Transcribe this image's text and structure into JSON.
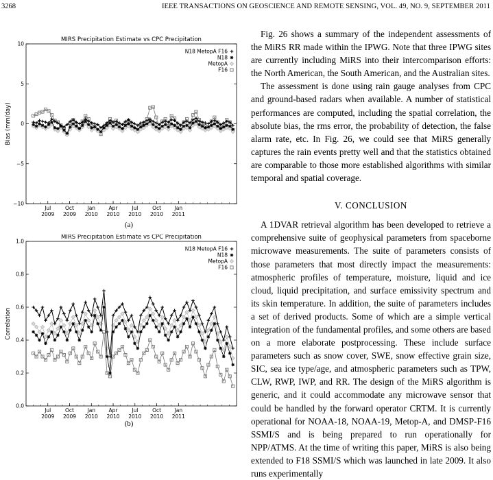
{
  "header": {
    "page_number": "3268",
    "journal": "IEEE TRANSACTIONS ON GEOSCIENCE AND REMOTE SENSING, VOL. 49, NO. 9, SEPTEMBER 2011"
  },
  "figures": {
    "a_caption": "(a)",
    "b_caption": "(b)"
  },
  "chart_data": [
    {
      "type": "line",
      "title": "MIRS Precipitation Estimate vs CPC Precipitation",
      "ylabel": "Bias (mm/day)",
      "xlabel": "",
      "ylim": [
        -10,
        10
      ],
      "xlim": [
        0,
        29
      ],
      "yticks": [
        "10",
        "5",
        "0",
        "−5",
        "−10"
      ],
      "ytick_values": [
        10,
        5,
        0,
        -5,
        -10
      ],
      "xticks": [
        {
          "pos": 3,
          "m": "Jul",
          "y": "2009"
        },
        {
          "pos": 6,
          "m": "Oct",
          "y": "2009"
        },
        {
          "pos": 9,
          "m": "Jan",
          "y": "2010"
        },
        {
          "pos": 12,
          "m": "Apr",
          "y": "2010"
        },
        {
          "pos": 15,
          "m": "Jul",
          "y": "2010"
        },
        {
          "pos": 18,
          "m": "Oct",
          "y": "2010"
        },
        {
          "pos": 21,
          "m": "Jan",
          "y": "2011"
        }
      ],
      "legend_position": "top-right",
      "series": [
        {
          "name": "N18 MetopA F16",
          "marker": "plus",
          "color": "#000000",
          "values": [
            0.2,
            0.1,
            0.4,
            0.3,
            0.2,
            0.1,
            0.6,
            0.3,
            0.1,
            -0.2,
            -0.4,
            -0.1,
            0.3,
            0.5,
            0.2,
            0.0,
            0.2,
            0.6,
            0.3,
            0.1,
            0.0,
            -0.1,
            -0.5,
            -0.2,
            0.1,
            0.4,
            0.2,
            0.3,
            0.1,
            -0.1,
            0.3,
            0.5,
            0.2,
            0.0,
            -0.2,
            0.1,
            0.2,
            0.4,
            0.6,
            0.3,
            0.1,
            -0.1,
            0.2,
            0.3,
            0.2,
            0.5,
            0.4,
            0.1,
            -0.2,
            0.2,
            0.3,
            0.1,
            0.5,
            0.7,
            0.3,
            0.2,
            0.1,
            0.0,
            0.3,
            0.4,
            0.2,
            -0.1,
            0.1,
            0.3,
            0.2,
            -0.2
          ]
        },
        {
          "name": "N18",
          "marker": "asterisk",
          "color": "#000000",
          "values": [
            -0.1,
            -0.3,
            0.0,
            -0.2,
            -0.4,
            -0.1,
            0.2,
            -0.5,
            -0.6,
            -0.3,
            -0.8,
            -1.2,
            -0.4,
            0.0,
            -0.3,
            -0.6,
            -0.2,
            0.3,
            -0.1,
            -0.5,
            -0.4,
            -0.7,
            -1.0,
            -0.5,
            -0.2,
            0.1,
            -0.3,
            -0.1,
            -0.4,
            -0.6,
            -0.2,
            0.0,
            -0.3,
            -0.5,
            -0.7,
            -0.4,
            -0.2,
            0.0,
            0.3,
            -0.1,
            -0.4,
            -0.6,
            -0.3,
            -0.1,
            -0.4,
            0.0,
            -0.2,
            -0.5,
            -0.7,
            -0.3,
            -0.2,
            -0.5,
            0.1,
            0.3,
            -0.1,
            -0.3,
            -0.5,
            -0.4,
            -0.2,
            0.0,
            -0.3,
            -0.6,
            -0.4,
            -0.2,
            -0.3,
            -0.7
          ]
        },
        {
          "name": "MetopA",
          "marker": "diamond",
          "color": "#bbbbbb",
          "values": [
            -0.3,
            -0.5,
            -0.2,
            -0.4,
            -0.6,
            -0.4,
            -0.1,
            -0.7,
            -0.9,
            -0.5,
            -1.0,
            -1.4,
            -0.7,
            -0.3,
            -0.5,
            -0.8,
            -0.4,
            0.0,
            -0.4,
            -0.8,
            -0.6,
            -0.9,
            -1.2,
            -0.8,
            -0.5,
            -0.2,
            -0.6,
            -0.4,
            -0.6,
            -0.9,
            -0.5,
            -0.3,
            -0.6,
            -0.8,
            -1.0,
            -0.7,
            -0.5,
            -0.2,
            0.0,
            -0.4,
            -0.7,
            -0.9,
            -0.6,
            -0.4,
            -0.7,
            -0.3,
            -0.5,
            -0.8,
            -1.0,
            -0.6,
            -0.5,
            -0.8,
            -0.2,
            0.0,
            -0.4,
            -0.6,
            -0.8,
            -0.7,
            -0.5,
            -0.3,
            -0.6,
            -0.9,
            -0.7,
            -0.5,
            -0.6,
            -1.0
          ]
        },
        {
          "name": "F16",
          "marker": "square",
          "color": "#777777",
          "values": [
            1.0,
            1.2,
            1.4,
            1.5,
            1.8,
            1.6,
            1.1,
            0.4,
            0.2,
            -0.2,
            -0.6,
            -1.3,
            0.1,
            0.5,
            0.0,
            -0.6,
            0.3,
            1.0,
            0.6,
            0.0,
            -0.4,
            -0.8,
            -1.3,
            -0.6,
            0.0,
            0.6,
            0.2,
            0.4,
            -0.2,
            -0.7,
            0.1,
            0.4,
            -0.1,
            -0.6,
            -0.9,
            -0.3,
            0.1,
            0.6,
            2.0,
            2.1,
            0.8,
            -0.3,
            0.3,
            0.6,
            0.1,
            1.0,
            0.7,
            -0.2,
            -0.8,
            0.2,
            0.6,
            0.0,
            1.1,
            1.5,
            0.5,
            0.1,
            -0.3,
            -0.6,
            0.3,
            0.8,
            0.2,
            -0.5,
            -0.2,
            0.5,
            0.2,
            -0.8
          ]
        }
      ]
    },
    {
      "type": "line",
      "title": "MIRS Precipitation Estimate vs CPC Precipitation",
      "ylabel": "Correlation",
      "xlabel": "",
      "ylim": [
        0.0,
        1.0
      ],
      "xlim": [
        0,
        29
      ],
      "yticks": [
        "1.0",
        "0.8",
        "0.6",
        "0.4",
        "0.2",
        "0.0"
      ],
      "ytick_values": [
        1.0,
        0.8,
        0.6,
        0.4,
        0.2,
        0.0
      ],
      "xticks": [
        {
          "pos": 3,
          "m": "Jul",
          "y": "2009"
        },
        {
          "pos": 6,
          "m": "Oct",
          "y": "2009"
        },
        {
          "pos": 9,
          "m": "Jan",
          "y": "2010"
        },
        {
          "pos": 12,
          "m": "Apr",
          "y": "2010"
        },
        {
          "pos": 15,
          "m": "Jul",
          "y": "2010"
        },
        {
          "pos": 18,
          "m": "Oct",
          "y": "2010"
        },
        {
          "pos": 21,
          "m": "Jan",
          "y": "2011"
        }
      ],
      "legend_position": "top-right",
      "series": [
        {
          "name": "N18 MetopA F16",
          "marker": "plus",
          "color": "#000000",
          "values": [
            0.6,
            0.58,
            0.55,
            0.6,
            0.52,
            0.55,
            0.58,
            0.5,
            0.53,
            0.6,
            0.56,
            0.52,
            0.58,
            0.62,
            0.55,
            0.5,
            0.57,
            0.63,
            0.58,
            0.55,
            0.65,
            0.6,
            0.55,
            0.7,
            0.45,
            0.3,
            0.55,
            0.58,
            0.6,
            0.62,
            0.57,
            0.52,
            0.55,
            0.48,
            0.45,
            0.55,
            0.58,
            0.6,
            0.66,
            0.62,
            0.58,
            0.55,
            0.6,
            0.53,
            0.5,
            0.55,
            0.58,
            0.52,
            0.55,
            0.6,
            0.63,
            0.58,
            0.64,
            0.6,
            0.55,
            0.5,
            0.45,
            0.52,
            0.56,
            0.6,
            0.5,
            0.45,
            0.4,
            0.48,
            0.42,
            0.35
          ]
        },
        {
          "name": "N18",
          "marker": "asterisk",
          "color": "#000000",
          "values": [
            0.45,
            0.43,
            0.4,
            0.44,
            0.38,
            0.42,
            0.45,
            0.4,
            0.43,
            0.48,
            0.45,
            0.4,
            0.46,
            0.5,
            0.45,
            0.4,
            0.46,
            0.52,
            0.48,
            0.45,
            0.55,
            0.5,
            0.46,
            0.6,
            0.3,
            0.2,
            0.45,
            0.48,
            0.5,
            0.52,
            0.47,
            0.42,
            0.45,
            0.38,
            0.35,
            0.45,
            0.48,
            0.5,
            0.55,
            0.52,
            0.48,
            0.45,
            0.5,
            0.43,
            0.4,
            0.45,
            0.48,
            0.42,
            0.45,
            0.5,
            0.53,
            0.48,
            0.54,
            0.5,
            0.45,
            0.4,
            0.35,
            0.42,
            0.46,
            0.5,
            0.4,
            0.35,
            0.3,
            0.38,
            0.32,
            0.25
          ]
        },
        {
          "name": "MetopA",
          "marker": "diamond",
          "color": "#bbbbbb",
          "values": [
            0.5,
            0.48,
            0.45,
            0.48,
            0.42,
            0.46,
            0.5,
            0.44,
            0.47,
            0.52,
            0.49,
            0.44,
            0.5,
            0.54,
            0.49,
            0.44,
            0.5,
            0.56,
            0.52,
            0.49,
            0.58,
            0.54,
            0.5,
            0.62,
            0.35,
            0.24,
            0.49,
            0.52,
            0.54,
            0.56,
            0.51,
            0.46,
            0.49,
            0.42,
            0.39,
            0.49,
            0.52,
            0.54,
            0.59,
            0.56,
            0.52,
            0.49,
            0.54,
            0.47,
            0.44,
            0.49,
            0.52,
            0.46,
            0.49,
            0.54,
            0.57,
            0.52,
            0.58,
            0.54,
            0.49,
            0.44,
            0.39,
            0.46,
            0.5,
            0.54,
            0.44,
            0.39,
            0.34,
            0.42,
            0.36,
            0.29
          ]
        },
        {
          "name": "F16",
          "marker": "square",
          "color": "#777777",
          "values": [
            0.32,
            0.3,
            0.33,
            0.3,
            0.28,
            0.31,
            0.34,
            0.28,
            0.3,
            0.33,
            0.31,
            0.27,
            0.32,
            0.35,
            0.3,
            0.26,
            0.3,
            0.36,
            0.32,
            0.29,
            0.38,
            0.33,
            0.3,
            0.45,
            0.2,
            0.18,
            0.3,
            0.32,
            0.34,
            0.36,
            0.31,
            0.26,
            0.28,
            0.22,
            0.2,
            0.28,
            0.32,
            0.34,
            0.4,
            0.36,
            0.3,
            0.27,
            0.32,
            0.25,
            0.22,
            0.28,
            0.32,
            0.26,
            0.28,
            0.33,
            0.36,
            0.3,
            0.38,
            0.33,
            0.28,
            0.23,
            0.18,
            0.25,
            0.3,
            0.34,
            0.24,
            0.19,
            0.15,
            0.22,
            0.18,
            0.12
          ]
        }
      ]
    }
  ],
  "body": {
    "para1": "Fig. 26 shows a summary of the independent assessments of the MiRS RR made within the IPWG. Note that three IPWG sites are currently including MiRS into their intercomparison efforts: the North American, the South American, and the Australian sites.",
    "para2": "The assessment is done using rain gauge analyses from CPC and ground-based radars when available. A number of statistical performances are computed, including the spatial correlation, the absolute bias, the rms error, the probability of detection, the false alarm rate, etc. In Fig. 26, we could see that MiRS generally captures the rain events pretty well and that the statistics obtained are comparable to those more established algorithms with similar temporal and spatial coverage.",
    "section_heading": "V. CONCLUSION",
    "para3": "A 1DVAR retrieval algorithm has been developed to retrieve a comprehensive suite of geophysical parameters from spaceborne microwave measurements. The suite of parameters consists of those parameters that most directly impact the measurements: atmospheric profiles of temperature, moisture, liquid and ice cloud, liquid precipitation, and surface emissivity spectrum and its skin temperature. In addition, the suite of parameters includes a set of derived products. Some of which are a simple vertical integration of the fundamental profiles, and some others are based on a more elaborate postprocessing. These include surface parameters such as snow cover, SWE, snow effective grain size, SIC, sea ice type/age, and atmospheric parameters such as TPW, CLW, RWP, IWP, and RR. The design of the MiRS algorithm is generic, and it could accommodate any microwave sensor that could be handled by the forward operator CRTM. It is currently operational for NOAA-18, NOAA-19, Metop-A, and DMSP-F16 SSMI/S and is being prepared to run operationally for NPP/ATMS. At the time of writing this paper, MiRS is also being extended to F18 SSMI/S which was launched in late 2009. It also runs experimentally"
  }
}
